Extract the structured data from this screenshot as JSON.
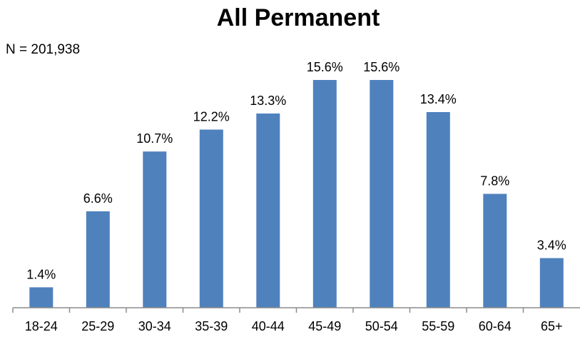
{
  "chart_data": {
    "type": "bar",
    "title": "All Permanent",
    "annotation": "N = 201,938",
    "categories": [
      "18-24",
      "25-29",
      "30-34",
      "35-39",
      "40-44",
      "45-49",
      "50-54",
      "55-59",
      "60-64",
      "65+"
    ],
    "values": [
      1.4,
      6.6,
      10.7,
      12.2,
      13.3,
      15.6,
      15.6,
      13.4,
      7.8,
      3.4
    ],
    "data_labels": [
      "1.4%",
      "6.6%",
      "10.7%",
      "12.2%",
      "13.3%",
      "15.6%",
      "15.6%",
      "13.4%",
      "7.8%",
      "3.4%"
    ],
    "xlabel": "",
    "ylabel": "",
    "ylim": [
      0,
      18
    ],
    "grid": false,
    "legend": "none",
    "bar_color": "#4f81bd"
  }
}
